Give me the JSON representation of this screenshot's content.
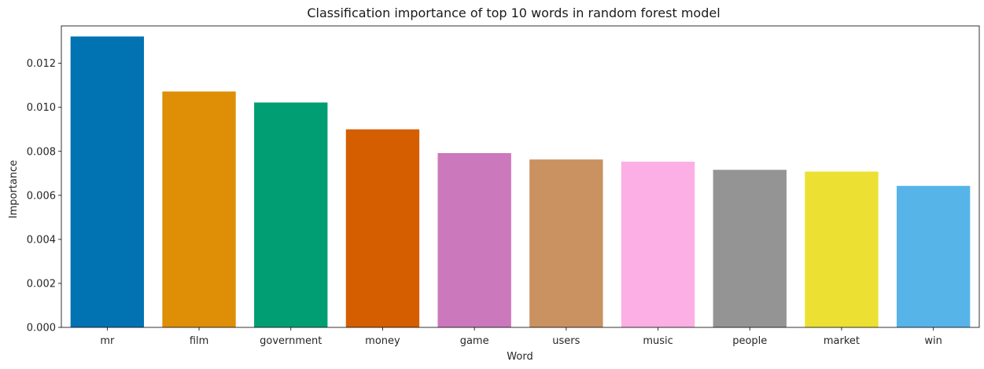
{
  "chart_data": {
    "type": "bar",
    "title": "Classification importance of top 10 words in random forest model",
    "xlabel": "Word",
    "ylabel": "Importance",
    "categories": [
      "mr",
      "film",
      "government",
      "money",
      "game",
      "users",
      "music",
      "people",
      "market",
      "win"
    ],
    "values": [
      0.01322,
      0.01072,
      0.01022,
      0.009,
      0.00792,
      0.00763,
      0.00753,
      0.00716,
      0.00708,
      0.00643
    ],
    "colors": [
      "#0173b2",
      "#de8f05",
      "#029e73",
      "#d55e00",
      "#cc78bc",
      "#ca9161",
      "#fbafe4",
      "#949494",
      "#ece133",
      "#56b4e9"
    ],
    "ylim": [
      0,
      0.0137
    ],
    "yticks": [
      0.0,
      0.002,
      0.004,
      0.006,
      0.008,
      0.01,
      0.012
    ],
    "ytick_labels": [
      "0.000",
      "0.002",
      "0.004",
      "0.006",
      "0.008",
      "0.010",
      "0.012"
    ],
    "grid": false,
    "legend": "none"
  }
}
